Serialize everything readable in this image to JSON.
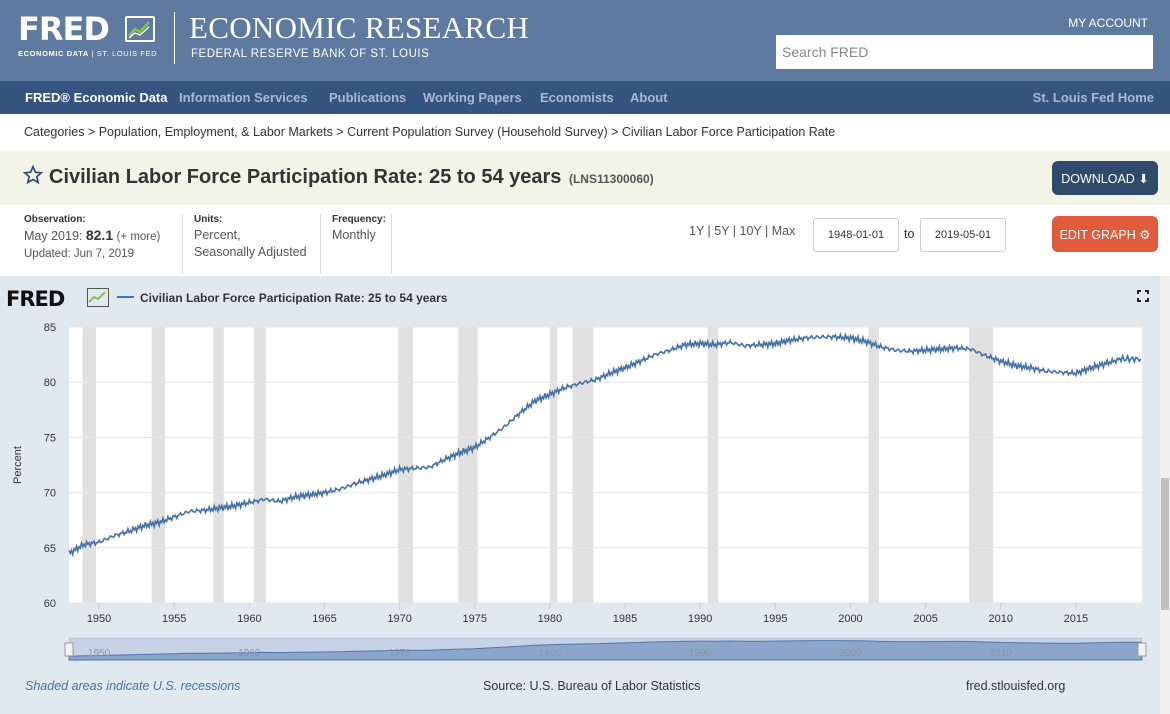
{
  "header": {
    "logo_word": "FRED",
    "logo_tag_bold": "ECONOMIC DATA",
    "logo_tag_rest": "| ST. LOUIS FED",
    "title": "ECONOMIC RESEARCH",
    "subtitle": "FEDERAL RESERVE BANK OF ST. LOUIS",
    "my_account": "MY ACCOUNT",
    "search_placeholder": "Search FRED"
  },
  "nav": {
    "items": [
      "FRED® Economic Data",
      "Information Services",
      "Publications",
      "Working Papers",
      "Economists",
      "About"
    ],
    "right": "St. Louis Fed Home"
  },
  "breadcrumb": "Categories > Population, Employment, & Labor Markets > Current Population Survey (Household Survey) > Civilian Labor Force Participation Rate",
  "series": {
    "title": "Civilian Labor Force Participation Rate: 25 to 54 years",
    "id": "(LNS11300060)",
    "download_label": "DOWNLOAD"
  },
  "meta": {
    "observation_label": "Observation:",
    "obs_date": "May 2019:",
    "obs_value": "82.1",
    "obs_more": "(+ more)",
    "updated": "Updated: Jun 7, 2019",
    "units_label": "Units:",
    "units_line1": "Percent,",
    "units_line2": "Seasonally Adjusted",
    "freq_label": "Frequency:",
    "freq_value": "Monthly"
  },
  "controls": {
    "ranges": "1Y | 5Y | 10Y | Max",
    "start_date": "1948-01-01",
    "to_label": "to",
    "end_date": "2019-05-01",
    "edit_label": "EDIT GRAPH"
  },
  "graph": {
    "logo_word": "FRED",
    "legend": "Civilian Labor Force Participation Rate: 25 to 54 years",
    "recession_note": "Shaded areas indicate U.S. recessions",
    "source": "Source: U.S. Bureau of Labor Statistics",
    "site": "fred.stlouisfed.org"
  },
  "colors": {
    "series": "#4572a7",
    "recession": "#e1e1e1",
    "header": "#5e7aa0",
    "nav": "#35547f",
    "edit": "#e35b3d",
    "download": "#2f4a6c"
  },
  "chart_data": {
    "type": "line",
    "title": "Civilian Labor Force Participation Rate: 25 to 54 years",
    "xlabel": "",
    "ylabel": "Percent",
    "ylim": [
      60,
      85
    ],
    "xlim": [
      1948.0,
      2019.4
    ],
    "yticks": [
      60,
      65,
      70,
      75,
      80,
      85
    ],
    "xticks": [
      1950,
      1955,
      1960,
      1965,
      1970,
      1975,
      1980,
      1985,
      1990,
      1995,
      2000,
      2005,
      2010,
      2015
    ],
    "navigator_labels": [
      1950,
      1960,
      1970,
      1980,
      1990,
      2000,
      2010
    ],
    "series": [
      {
        "name": "Civilian Labor Force Participation Rate: 25 to 54 years",
        "x": [
          1948,
          1949,
          1950,
          1951,
          1952,
          1953,
          1954,
          1955,
          1956,
          1957,
          1958,
          1959,
          1960,
          1961,
          1962,
          1963,
          1964,
          1965,
          1966,
          1967,
          1968,
          1969,
          1970,
          1971,
          1972,
          1973,
          1974,
          1975,
          1976,
          1977,
          1978,
          1979,
          1980,
          1981,
          1982,
          1983,
          1984,
          1985,
          1986,
          1987,
          1988,
          1989,
          1990,
          1991,
          1992,
          1993,
          1994,
          1995,
          1996,
          1997,
          1998,
          1999,
          2000,
          2001,
          2002,
          2003,
          2004,
          2005,
          2006,
          2007,
          2008,
          2009,
          2010,
          2011,
          2012,
          2013,
          2014,
          2015,
          2016,
          2017,
          2018,
          2019.33
        ],
        "values": [
          64.5,
          65.3,
          65.5,
          66.1,
          66.5,
          67.0,
          67.3,
          67.8,
          68.3,
          68.4,
          68.6,
          68.8,
          69.1,
          69.4,
          69.2,
          69.6,
          69.8,
          70.0,
          70.3,
          70.8,
          71.2,
          71.6,
          72.1,
          72.2,
          72.3,
          73.0,
          73.6,
          74.1,
          75.0,
          76.0,
          77.2,
          78.3,
          78.9,
          79.5,
          79.9,
          80.2,
          80.8,
          81.3,
          81.9,
          82.5,
          82.9,
          83.4,
          83.5,
          83.4,
          83.6,
          83.3,
          83.4,
          83.5,
          83.8,
          84.0,
          84.1,
          84.1,
          84.0,
          83.7,
          83.2,
          82.9,
          82.8,
          82.9,
          83.0,
          83.1,
          83.0,
          82.4,
          81.9,
          81.5,
          81.3,
          81.0,
          80.9,
          80.8,
          81.3,
          81.7,
          82.1,
          82.1
        ]
      }
    ],
    "recessions": [
      [
        1948.9,
        1949.8
      ],
      [
        1953.5,
        1954.4
      ],
      [
        1957.6,
        1958.3
      ],
      [
        1960.3,
        1961.1
      ],
      [
        1969.9,
        1970.9
      ],
      [
        1973.9,
        1975.2
      ],
      [
        1980.0,
        1980.5
      ],
      [
        1981.5,
        1982.9
      ],
      [
        1990.5,
        1991.2
      ],
      [
        2001.2,
        2001.9
      ],
      [
        2007.9,
        2009.5
      ]
    ]
  }
}
